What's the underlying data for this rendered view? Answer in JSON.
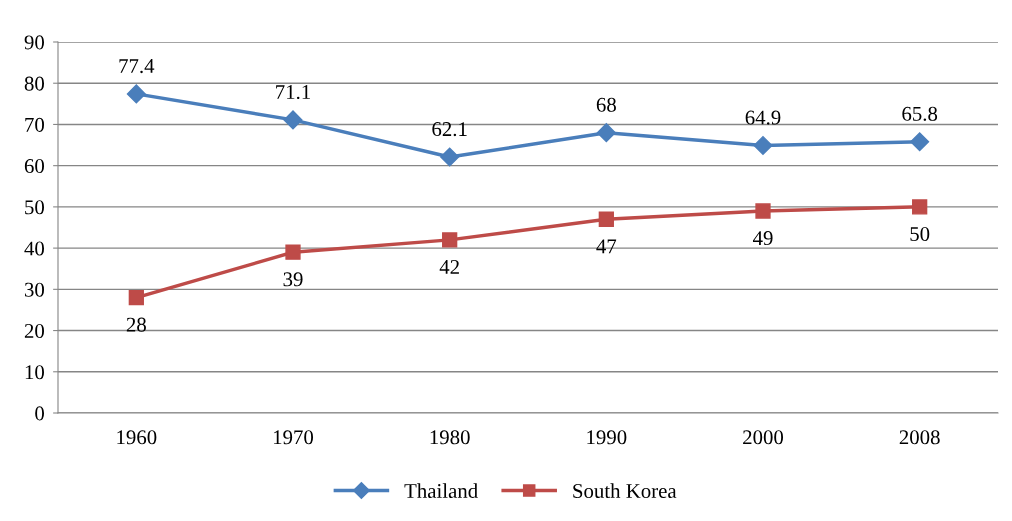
{
  "chart_data": {
    "type": "line",
    "categories": [
      "1960",
      "1970",
      "1980",
      "1990",
      "2000",
      "2008"
    ],
    "series": [
      {
        "name": "Thailand",
        "color": "#4a7ebb",
        "marker": "diamond",
        "values": [
          77.4,
          71.1,
          62.1,
          68,
          64.9,
          65.8
        ]
      },
      {
        "name": "South Korea",
        "color": "#be4b48",
        "marker": "square",
        "values": [
          28,
          39,
          42,
          47,
          49,
          50
        ]
      }
    ],
    "ylim": [
      0,
      90
    ],
    "yticks": [
      0,
      10,
      20,
      30,
      40,
      50,
      60,
      70,
      80,
      90
    ],
    "grid": "y",
    "legend": "bottom",
    "data_labels": true,
    "line_style": "solid"
  }
}
